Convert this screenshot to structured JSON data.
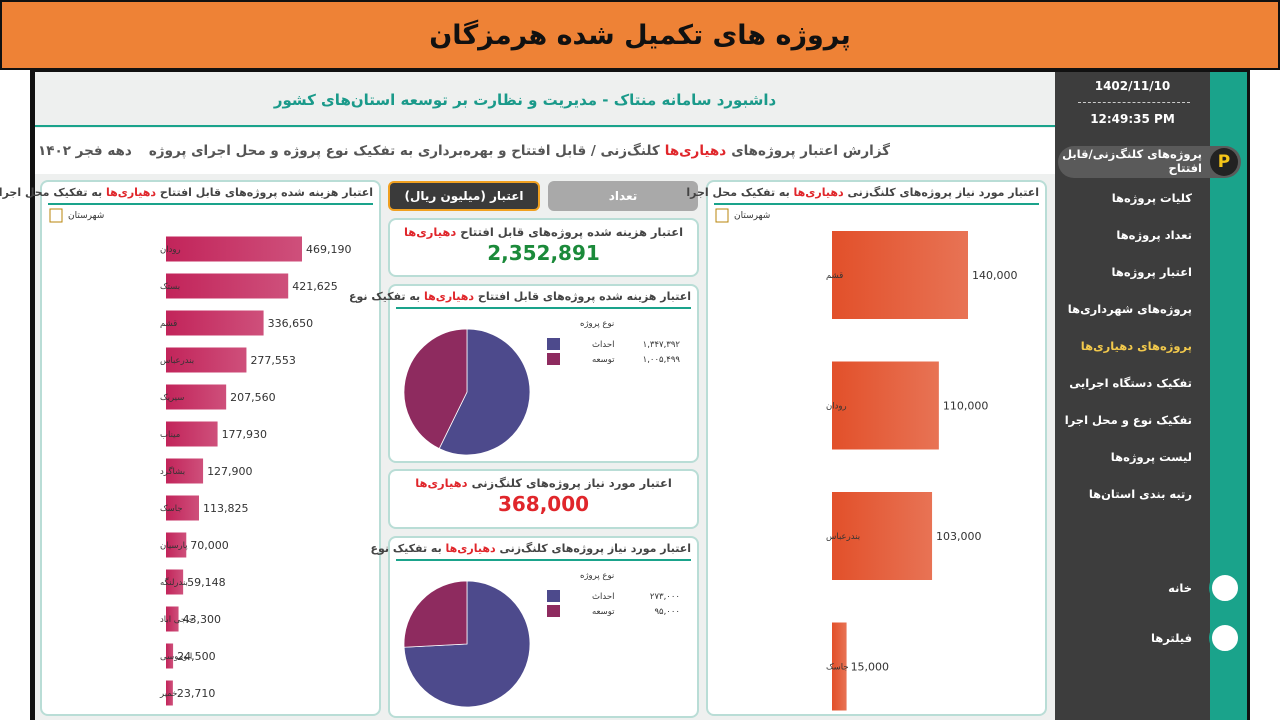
{
  "header": {
    "title": "پروژه های تکمیل شده هرمزگان"
  },
  "sidebar": {
    "date": "1402/11/10",
    "time": "12:49:35 PM",
    "menu": [
      "پروژه‌های کلنگ‌زنی/قابل افتتاح",
      "کلیات پروژه‌ها",
      "تعداد پروژه‌ها",
      "اعتبار پروژه‌ها",
      "پروژه‌های شهرداری‌ها",
      "پروژه‌های دهیاری‌ها",
      "تفکیک دستگاه اجرایی",
      "تفکیک نوع و محل اجرا",
      "لیست پروژه‌ها",
      "رتبه بندی استان‌ها"
    ],
    "bottom": [
      "خانه",
      "فیلترها"
    ]
  },
  "dashboard": {
    "title": "داشبورد سامانه منتاک - مدیریت و نظارت بر توسعه استان‌های کشور",
    "report": {
      "start": "گزارش اعتبار پروژه‌های",
      "highlight": "دهیاری‌ها",
      "end": "کلنگ‌زنی / قابل افتتاح و بهره‌برداری به تفکیک نوع پروژه و محل اجرای پروژه",
      "period": "دهه فجر ۱۴۰۲"
    },
    "toggles": [
      "تعداد",
      "اعتبار (میلیون ریال)"
    ],
    "kpis": [
      {
        "title": {
          "start": "اعتبار هزینه شده پروژه‌های قابل افتتاح",
          "highlight": "دهیاری‌ها"
        },
        "value": "2,352,891"
      },
      {
        "title": {
          "start": "اعتبار مورد نیاز پروژه‌های کلنگ‌زنی",
          "highlight": "دهیاری‌ها"
        },
        "value": "368,000"
      }
    ]
  },
  "chart_data": [
    {
      "type": "bar",
      "title": {
        "start": "اعتبار هزینه شده پروژه‌های قابل افتتاح",
        "highlight": "دهیاری‌ها",
        "end": "به تفکیک محل اجرا"
      },
      "axis_label": "شهرستان",
      "categories": [
        "رودان",
        "بستک",
        "قشم",
        "بندرعباس",
        "سیریک",
        "میناب",
        "بشاگرد",
        "جاسک",
        "پارسیان",
        "بندرلنگه",
        "حاجی اباد",
        "ابوموسی",
        "خمیر"
      ],
      "values": [
        469190,
        421625,
        336650,
        277553,
        207560,
        177930,
        127900,
        113825,
        70000,
        59148,
        43300,
        24500,
        23710
      ],
      "value_labels": [
        "469,190",
        "421,625",
        "336,650",
        "277,553",
        "207,560",
        "177,930",
        "127,900",
        "113,825",
        "70,000",
        "59,148",
        "43,300",
        "24,500",
        "23,710"
      ],
      "color": "#c2245a"
    },
    {
      "type": "pie",
      "title": {
        "start": "اعتبار هزینه شده پروژه‌های قابل افتتاح",
        "highlight": "دهیاری‌ها",
        "end": "به تفکیک نوع"
      },
      "legend_title": "نوع پروژه",
      "categories": [
        "احداث",
        "توسعه"
      ],
      "values": [
        1347392,
        1005499
      ],
      "value_labels": [
        "۱,۳۴۷,۳۹۲",
        "۱,۰۰۵,۴۹۹"
      ],
      "colors": [
        "#4d4a8c",
        "#8e2b5f"
      ]
    },
    {
      "type": "pie",
      "title": {
        "start": "اعتبار مورد نیاز پروژه‌های کلنگ‌زنی",
        "highlight": "دهیاری‌ها",
        "end": "به تفکیک نوع"
      },
      "legend_title": "نوع پروژه",
      "categories": [
        "احداث",
        "توسعه"
      ],
      "values": [
        273000,
        95000
      ],
      "value_labels": [
        "۲۷۳,۰۰۰",
        "۹۵,۰۰۰"
      ],
      "colors": [
        "#4d4a8c",
        "#8e2b5f"
      ]
    },
    {
      "type": "bar",
      "title": {
        "start": "اعتبار مورد نیاز پروژه‌های کلنگ‌زنی",
        "highlight": "دهیاری‌ها",
        "end": "به تفکیک محل اجرا"
      },
      "axis_label": "شهرستان",
      "categories": [
        "قشم",
        "رودان",
        "بندرعباس",
        "جاسک"
      ],
      "values": [
        140000,
        110000,
        103000,
        15000
      ],
      "value_labels": [
        "140,000",
        "110,000",
        "103,000",
        "15,000"
      ],
      "color": "#e2502a"
    }
  ]
}
